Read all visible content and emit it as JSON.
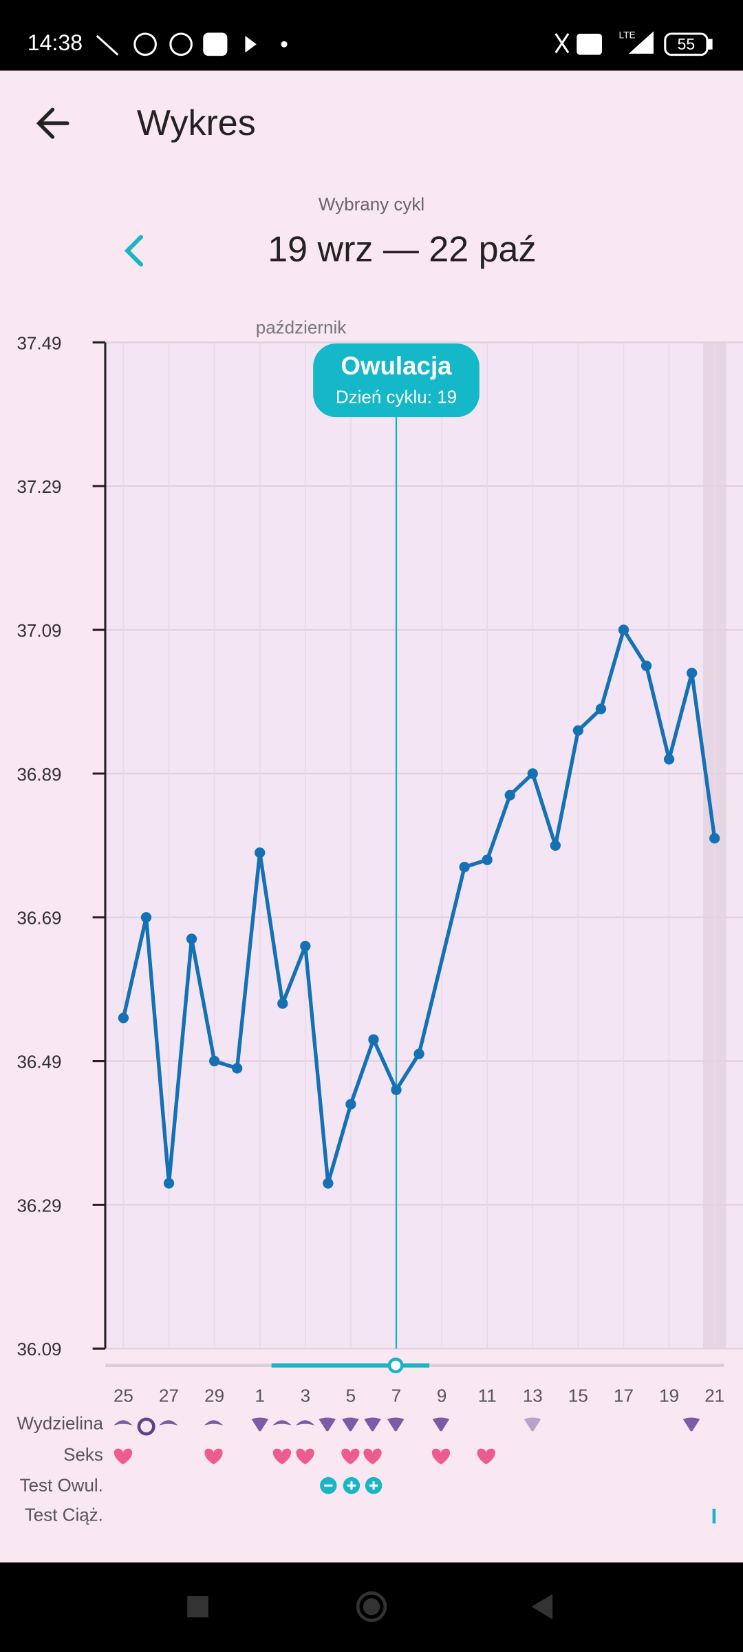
{
  "status_bar": {
    "time": "14:38",
    "network": "LTE",
    "battery": "55"
  },
  "header": {
    "title": "Wykres"
  },
  "cycle": {
    "label": "Wybrany cykl",
    "range": "19 wrz — 22 paź"
  },
  "chart_data": {
    "type": "line",
    "month_label": "październik",
    "x": [
      7,
      8,
      9,
      10,
      11,
      12,
      13,
      14,
      15,
      16,
      17,
      18,
      19,
      20,
      22,
      23,
      24,
      25,
      26,
      27,
      28,
      29,
      30,
      31,
      32,
      33
    ],
    "values": [
      36.55,
      36.69,
      36.32,
      36.66,
      36.49,
      36.48,
      36.78,
      36.57,
      36.65,
      36.32,
      36.43,
      36.52,
      36.45,
      36.5,
      36.76,
      36.77,
      36.86,
      36.89,
      36.79,
      36.95,
      36.98,
      37.09,
      37.04,
      36.91,
      37.03,
      36.8
    ],
    "color": "#1471b3",
    "xlim": [
      6.2,
      34.25
    ],
    "xticks": [
      {
        "value": 7,
        "label": "25"
      },
      {
        "value": 9,
        "label": "27"
      },
      {
        "value": 11,
        "label": "29"
      },
      {
        "value": 13,
        "label": "1"
      },
      {
        "value": 15,
        "label": "3"
      },
      {
        "value": 17,
        "label": "5"
      },
      {
        "value": 19,
        "label": "7"
      },
      {
        "value": 21,
        "label": "9"
      },
      {
        "value": 23,
        "label": "11"
      },
      {
        "value": 25,
        "label": "13"
      },
      {
        "value": 27,
        "label": "15"
      },
      {
        "value": 29,
        "label": "17"
      },
      {
        "value": 31,
        "label": "19"
      },
      {
        "value": 33,
        "label": "21"
      }
    ],
    "ylim": [
      36.09,
      37.49
    ],
    "yticks": [
      36.09,
      36.29,
      36.49,
      36.69,
      36.89,
      37.09,
      37.29,
      37.49
    ],
    "grid": true,
    "annotation": {
      "title": "Owulacja",
      "text": "Dzień cyklu: 19",
      "x": 19
    }
  },
  "rows": [
    "Wydzielina",
    "Seks",
    "Test Owul.",
    "Test Ciąż."
  ]
}
